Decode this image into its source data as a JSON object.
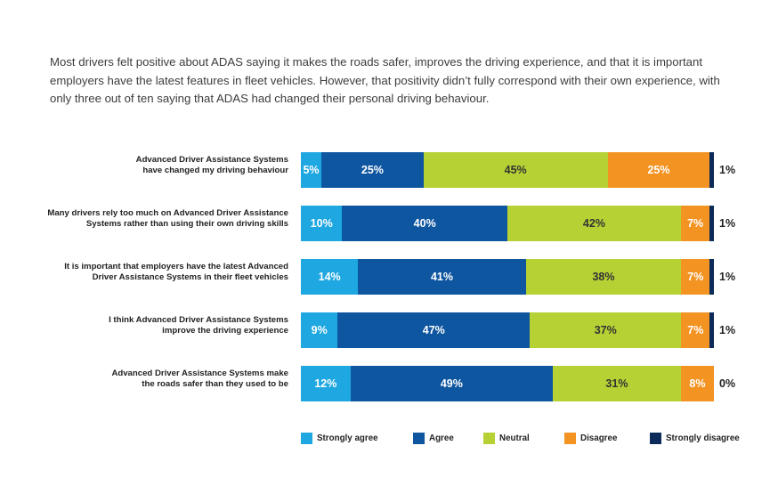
{
  "intro": "Most drivers felt positive about ADAS saying it makes the roads safer, improves the driving experience, and that it is important employers have the latest features in fleet vehicles. However, that positivity didn’t fully correspond with their own experience, with only three out of ten saying that ADAS had changed their personal driving behaviour.",
  "chart_data": {
    "type": "bar",
    "orientation": "horizontal",
    "stacked": true,
    "normalized": true,
    "grid": false,
    "legend_position": "bottom",
    "categories": [
      [
        "Advanced Driver Assistance Systems",
        "have changed my driving behaviour"
      ],
      [
        "Many drivers rely too much on Advanced Driver Assistance",
        "Systems rather than using their own driving skills"
      ],
      [
        "It is important that employers have the latest Advanced",
        "Driver Assistance Systems in their fleet vehicles"
      ],
      [
        "I think Advanced Driver Assistance Systems",
        "improve the driving experience"
      ],
      [
        "Advanced Driver Assistance Systems make",
        "the roads safer than they used to be"
      ]
    ],
    "series": [
      {
        "name": "Strongly agree",
        "color": "#1ea7e1",
        "values": [
          5,
          10,
          14,
          9,
          12
        ]
      },
      {
        "name": "Agree",
        "color": "#0e56a0",
        "values": [
          25,
          40,
          41,
          47,
          49
        ]
      },
      {
        "name": "Neutral",
        "color": "#b6d134",
        "values": [
          45,
          42,
          38,
          37,
          31
        ]
      },
      {
        "name": "Disagree",
        "color": "#f39322",
        "values": [
          25,
          7,
          7,
          7,
          8
        ]
      },
      {
        "name": "Strongly disagree",
        "color": "#0c2b5b",
        "values": [
          1,
          1,
          1,
          1,
          0
        ]
      }
    ],
    "value_suffix": "%"
  }
}
